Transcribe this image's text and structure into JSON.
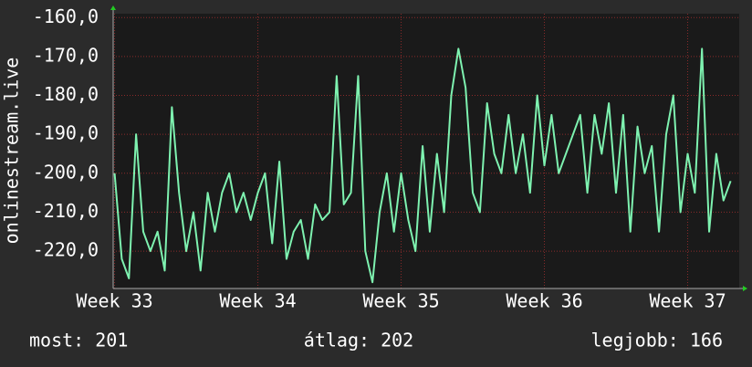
{
  "chart_data": {
    "type": "line",
    "y_label": "onlinestream.live",
    "x": [
      33.0,
      33.05,
      33.1,
      33.15,
      33.2,
      33.25,
      33.3,
      33.35,
      33.4,
      33.45,
      33.5,
      33.55,
      33.6,
      33.65,
      33.7,
      33.75,
      33.8,
      33.85,
      33.9,
      33.95,
      34.0,
      34.05,
      34.1,
      34.15,
      34.2,
      34.25,
      34.3,
      34.35,
      34.4,
      34.45,
      34.5,
      34.55,
      34.6,
      34.65,
      34.7,
      34.75,
      34.8,
      34.85,
      34.9,
      34.95,
      35.0,
      35.05,
      35.1,
      35.15,
      35.2,
      35.25,
      35.3,
      35.35,
      35.4,
      35.45,
      35.5,
      35.55,
      35.6,
      35.65,
      35.7,
      35.75,
      35.8,
      35.85,
      35.9,
      35.95,
      36.0,
      36.05,
      36.1,
      36.15,
      36.2,
      36.25,
      36.3,
      36.35,
      36.4,
      36.45,
      36.5,
      36.55,
      36.6,
      36.65,
      36.7,
      36.75,
      36.8,
      36.85,
      36.9,
      36.95,
      37.0,
      37.05,
      37.1,
      37.15,
      37.2,
      37.25,
      37.3
    ],
    "series": [
      {
        "name": "onlinestream.live",
        "color": "#7ef2b0",
        "values": [
          -200,
          -222,
          -227,
          -190,
          -215,
          -220,
          -215,
          -225,
          -183,
          -205,
          -220,
          -210,
          -225,
          -205,
          -215,
          -205,
          -200,
          -210,
          -205,
          -212,
          -205,
          -200,
          -218,
          -197,
          -222,
          -215,
          -212,
          -222,
          -208,
          -212,
          -210,
          -175,
          -208,
          -205,
          -175,
          -220,
          -228,
          -210,
          -200,
          -215,
          -200,
          -212,
          -220,
          -193,
          -215,
          -195,
          -210,
          -180,
          -168,
          -178,
          -205,
          -210,
          -182,
          -195,
          -200,
          -185,
          -200,
          -190,
          -205,
          -180,
          -198,
          -185,
          -200,
          -195,
          -190,
          -185,
          -205,
          -185,
          -195,
          -182,
          -205,
          -185,
          -215,
          -188,
          -200,
          -193,
          -215,
          -190,
          -180,
          -210,
          -195,
          -205,
          -168,
          -215,
          -195,
          -207,
          -202
        ]
      }
    ],
    "xlim": [
      32.99,
      37.36
    ],
    "xticks": [
      {
        "value": 33,
        "label": "Week 33"
      },
      {
        "value": 34,
        "label": "Week 34"
      },
      {
        "value": 35,
        "label": "Week 35"
      },
      {
        "value": 36,
        "label": "Week 36"
      },
      {
        "value": 37,
        "label": "Week 37"
      }
    ],
    "ylim": [
      -229.6,
      -159
    ],
    "yticks": [
      {
        "value": -160,
        "label": "-160,0"
      },
      {
        "value": -170,
        "label": "-170,0"
      },
      {
        "value": -180,
        "label": "-180,0"
      },
      {
        "value": -190,
        "label": "-190,0"
      },
      {
        "value": -200,
        "label": "-200,0"
      },
      {
        "value": -210,
        "label": "-210,0"
      },
      {
        "value": -220,
        "label": "-220,0"
      }
    ],
    "grid": true,
    "footer": [
      "most: 201",
      "átlag: 202",
      "legjobb: 166"
    ]
  }
}
